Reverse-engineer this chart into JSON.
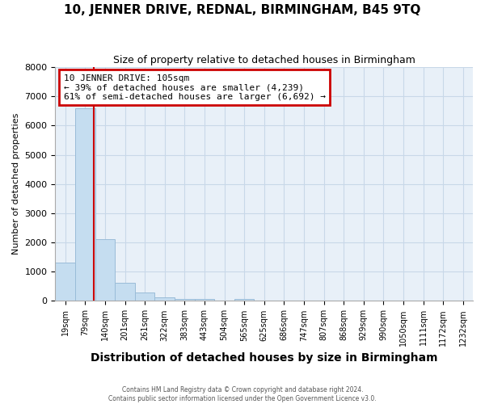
{
  "title": "10, JENNER DRIVE, REDNAL, BIRMINGHAM, B45 9TQ",
  "subtitle": "Size of property relative to detached houses in Birmingham",
  "xlabel": "Distribution of detached houses by size in Birmingham",
  "ylabel": "Number of detached properties",
  "bar_labels": [
    "19sqm",
    "79sqm",
    "140sqm",
    "201sqm",
    "261sqm",
    "322sqm",
    "383sqm",
    "443sqm",
    "504sqm",
    "565sqm",
    "625sqm",
    "686sqm",
    "747sqm",
    "807sqm",
    "868sqm",
    "929sqm",
    "990sqm",
    "1050sqm",
    "1111sqm",
    "1172sqm",
    "1232sqm"
  ],
  "bar_values": [
    1300,
    6600,
    2100,
    620,
    300,
    130,
    80,
    80,
    0,
    80,
    0,
    0,
    0,
    0,
    0,
    0,
    0,
    0,
    0,
    0,
    0
  ],
  "bar_color": "#c5ddf0",
  "bar_edge_color": "#9abcd8",
  "grid_color": "#c8d8e8",
  "plot_bg_color": "#e8f0f8",
  "fig_bg_color": "#ffffff",
  "red_line_x": 1.45,
  "annotation_text": "10 JENNER DRIVE: 105sqm\n← 39% of detached houses are smaller (4,239)\n61% of semi-detached houses are larger (6,692) →",
  "annotation_box_color": "#cc0000",
  "ylim": [
    0,
    8000
  ],
  "yticks": [
    0,
    1000,
    2000,
    3000,
    4000,
    5000,
    6000,
    7000,
    8000
  ],
  "title_fontsize": 11,
  "subtitle_fontsize": 9,
  "xlabel_fontsize": 10,
  "ylabel_fontsize": 8,
  "footer_line1": "Contains HM Land Registry data © Crown copyright and database right 2024.",
  "footer_line2": "Contains public sector information licensed under the Open Government Licence v3.0."
}
